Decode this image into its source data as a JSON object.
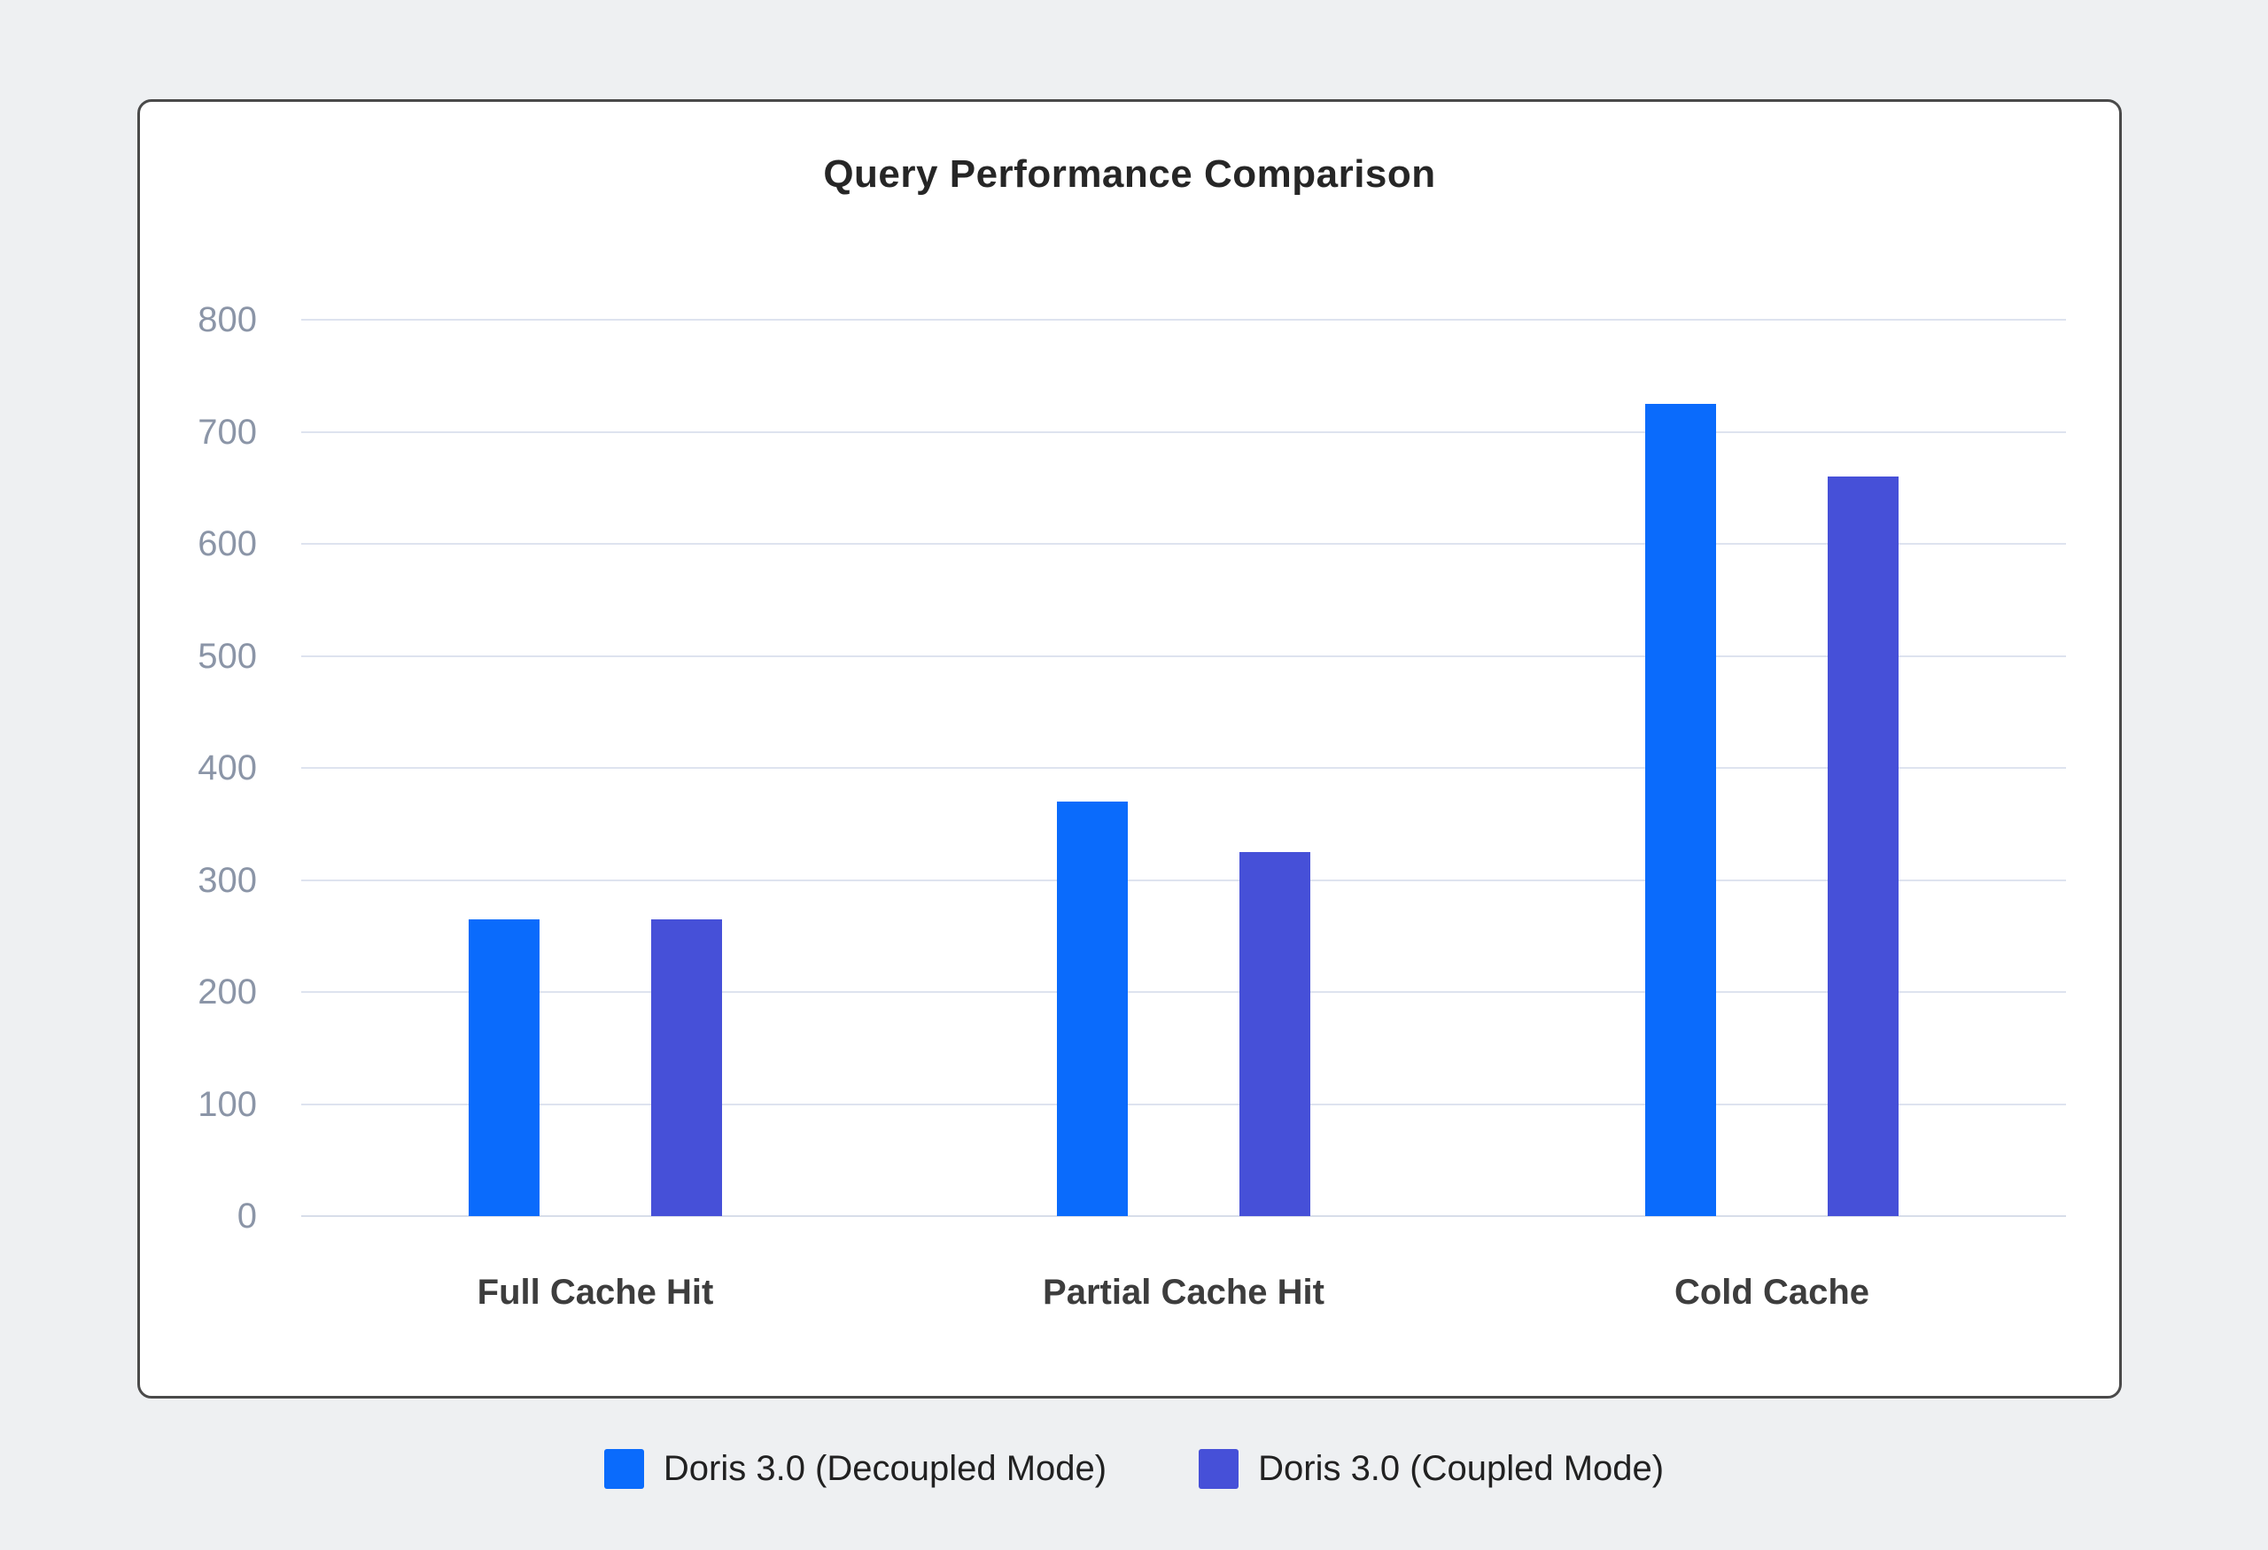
{
  "chart_data": {
    "type": "bar",
    "title": "Query Performance Comparison",
    "categories": [
      "Full Cache Hit",
      "Partial Cache Hit",
      "Cold Cache"
    ],
    "series": [
      {
        "name": "Doris 3.0 (Decoupled Mode)",
        "color": "#0a6bfc",
        "values": [
          265,
          370,
          725
        ]
      },
      {
        "name": "Doris 3.0 (Coupled Mode)",
        "color": "#4650d8",
        "values": [
          265,
          325,
          660
        ]
      }
    ],
    "ylim": [
      0,
      800
    ],
    "ytick_step": 100,
    "ytick_labels": [
      "0",
      "100",
      "200",
      "300",
      "400",
      "500",
      "600",
      "700",
      "800"
    ],
    "xlabel": "",
    "ylabel": "",
    "grid": true,
    "legend_position": "bottom"
  },
  "colors": {
    "page_background": "#eef0f2",
    "card_background": "#ffffff",
    "card_border": "#4a4a4a",
    "gridline": "#dee3ef",
    "axis_tick_label": "#8b95a7",
    "category_label": "#3d3d3d",
    "title_text": "#262626",
    "legend_text": "#212121"
  }
}
